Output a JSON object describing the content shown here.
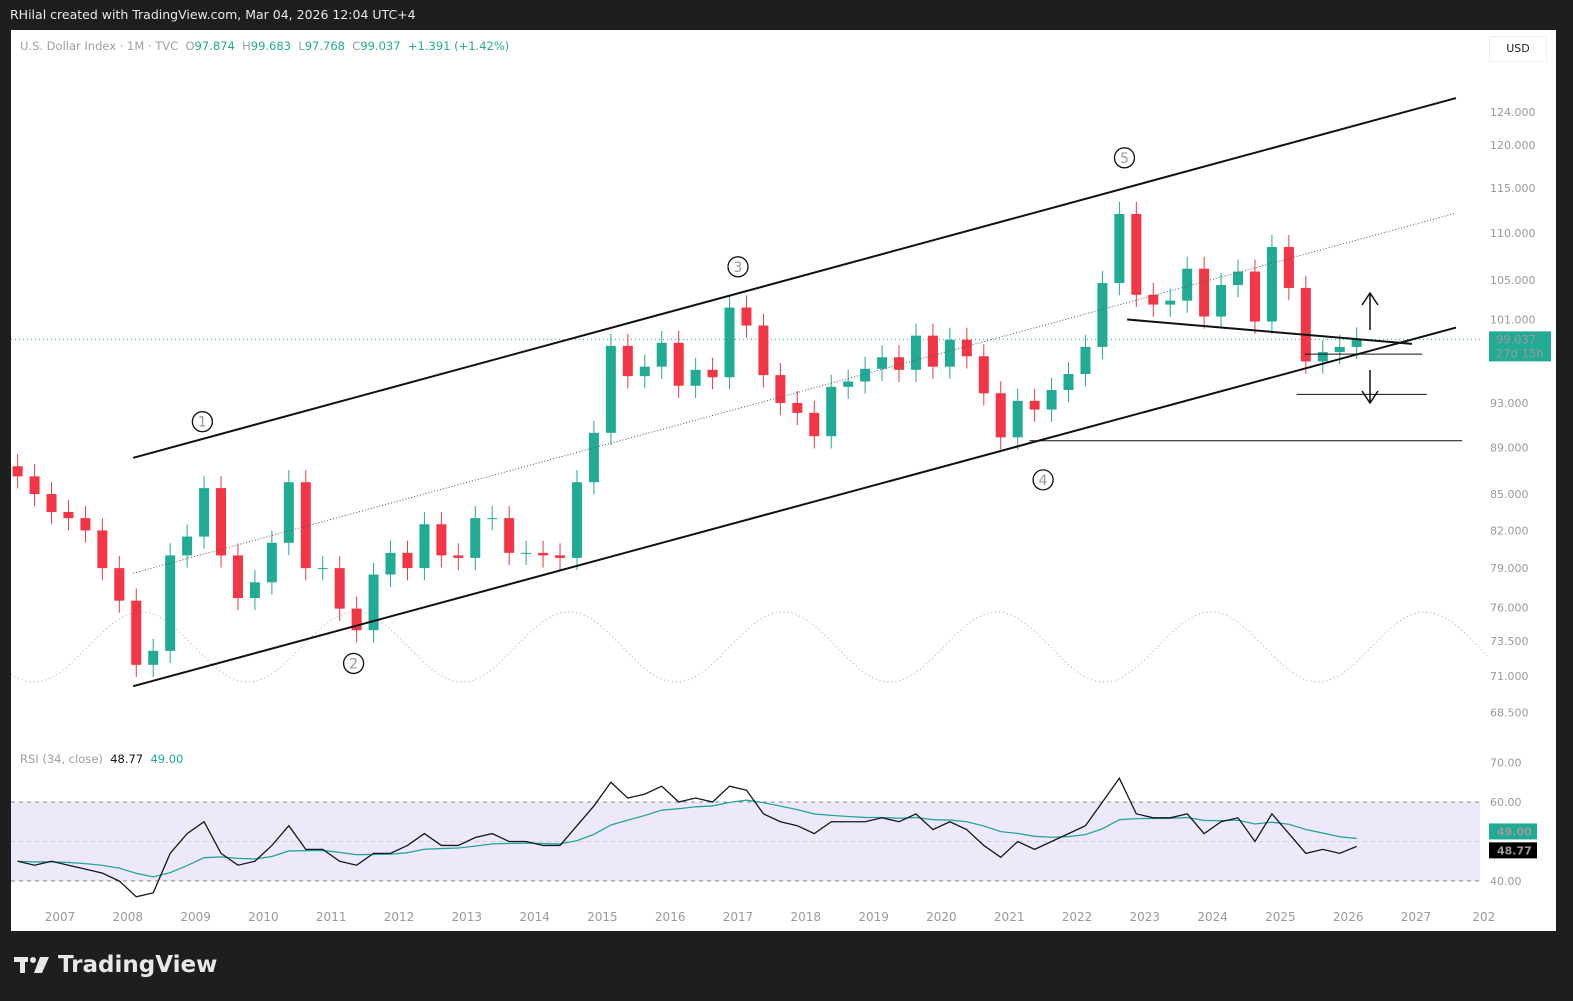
{
  "header": {
    "credit": "RHilal created with TradingView.com, Mar 04, 2026 12:04 UTC+4"
  },
  "legend": {
    "symbol": "U.S. Dollar Index · 1M · TVC",
    "o_label": "O",
    "open": "97.874",
    "h_label": "H",
    "high": "99.683",
    "l_label": "L",
    "low": "97.768",
    "c_label": "C",
    "close": "99.037",
    "change": "+1.391 (+1.42%)"
  },
  "currency": "USD",
  "price_tag": {
    "value": "99.037",
    "countdown": "27d 15h"
  },
  "rsi_legend": {
    "label": "RSI (34, close)",
    "rsi": "48.77",
    "ma": "49.00"
  },
  "footer": {
    "brand": "TradingView"
  },
  "colors": {
    "up": "#22ab94",
    "down": "#f23645",
    "rsi": "#131722",
    "rsi_ma": "#26a69a",
    "band": "#ede9fb"
  },
  "chart_data": {
    "type": "candlestick",
    "title": "U.S. Dollar Index · 1M · TVC",
    "scale": "log",
    "price_ticks": [
      124,
      120,
      115,
      110,
      105,
      101,
      93,
      89,
      85,
      82,
      79,
      76,
      73.5,
      71,
      68.5
    ],
    "price_tick_labels": [
      "124.000",
      "120.000",
      "115.000",
      "110.000",
      "105.000",
      "101.000",
      "93.000",
      "89.000",
      "85.000",
      "82.000",
      "79.000",
      "76.000",
      "73.500",
      "71.000",
      "68.500"
    ],
    "year_labels": [
      "2007",
      "2008",
      "2009",
      "2010",
      "2011",
      "2012",
      "2013",
      "2014",
      "2015",
      "2016",
      "2017",
      "2018",
      "2019",
      "2020",
      "2021",
      "2022",
      "2023",
      "2024",
      "2025",
      "2026",
      "2027",
      "202"
    ],
    "start_period": 2006.25,
    "period_years": 0.25,
    "closes": [
      86.5,
      85,
      83.5,
      83,
      82,
      79,
      76.5,
      71.8,
      72.8,
      80,
      81.5,
      85.5,
      80,
      76.7,
      77.9,
      81,
      86,
      79,
      79,
      75.9,
      74.3,
      78.5,
      80.2,
      79,
      82.5,
      80,
      79.8,
      83,
      83,
      80.2,
      80.2,
      80,
      79.8,
      86,
      90.3,
      98.4,
      95.5,
      96.4,
      98.7,
      94.6,
      96.1,
      95.4,
      102.2,
      100.4,
      95.6,
      93,
      92.1,
      90,
      94.5,
      95,
      96.2,
      97.3,
      96.1,
      99.4,
      96.4,
      99,
      97.4,
      93.9,
      89.9,
      93.2,
      92.4,
      94.2,
      95.7,
      98.3,
      104.7,
      112.1,
      103.5,
      102.5,
      102.9,
      106.2,
      101.3,
      104.5,
      105.9,
      100.8,
      108.5,
      104.2,
      96.9,
      97.8,
      98.3,
      99.037
    ],
    "rsi": {
      "label": "RSI (34, close)",
      "levels": [
        70,
        60,
        40
      ],
      "level_labels": [
        "70.00",
        "60.00",
        "40.00"
      ],
      "values": [
        45,
        44,
        45,
        44,
        43,
        42,
        40,
        36,
        37,
        47,
        52,
        55,
        47,
        44,
        45,
        49,
        54,
        48,
        48,
        45,
        44,
        47,
        47,
        49,
        52,
        49,
        49,
        51,
        52,
        50,
        50,
        49,
        49,
        54,
        59,
        65,
        61,
        62,
        64,
        60,
        61,
        60,
        64,
        63,
        57,
        55,
        54,
        52,
        55,
        55,
        55,
        56,
        55,
        57,
        53,
        55,
        53,
        49,
        46,
        50,
        48,
        50,
        52,
        54,
        60,
        66,
        57,
        56,
        56,
        57,
        52,
        55,
        56,
        50,
        57,
        52,
        47,
        48,
        47,
        48.77
      ],
      "last": 48.77,
      "ma_last": 49.0
    },
    "annotations": {
      "channel_upper": [
        [
          2008.08,
          88.1
        ],
        [
          2027.59,
          125.7
        ]
      ],
      "channel_mid": [
        [
          2008.08,
          78.6
        ],
        [
          2027.59,
          112.2
        ]
      ],
      "channel_lower": [
        [
          2008.08,
          70.3
        ],
        [
          2027.59,
          100.2
        ]
      ],
      "support_2021": [
        [
          2021.3,
          89.6
        ],
        [
          2027.68,
          89.6
        ]
      ],
      "descending_line": [
        [
          2022.74,
          101
        ],
        [
          2026.94,
          98.6
        ]
      ],
      "level_97": [
        [
          2025.36,
          97.6
        ],
        [
          2027.09,
          97.6
        ]
      ],
      "level_93": [
        [
          2025.24,
          93.8
        ],
        [
          2027.16,
          93.8
        ]
      ],
      "waves": [
        {
          "label": "1",
          "t": 2009.1,
          "p": 91.3
        },
        {
          "label": "2",
          "t": 2011.33,
          "p": 71.9
        },
        {
          "label": "3",
          "t": 2017.0,
          "p": 106.4
        },
        {
          "label": "4",
          "t": 2021.5,
          "p": 86.2
        },
        {
          "label": "5",
          "t": 2022.7,
          "p": 118.5
        }
      ]
    }
  }
}
